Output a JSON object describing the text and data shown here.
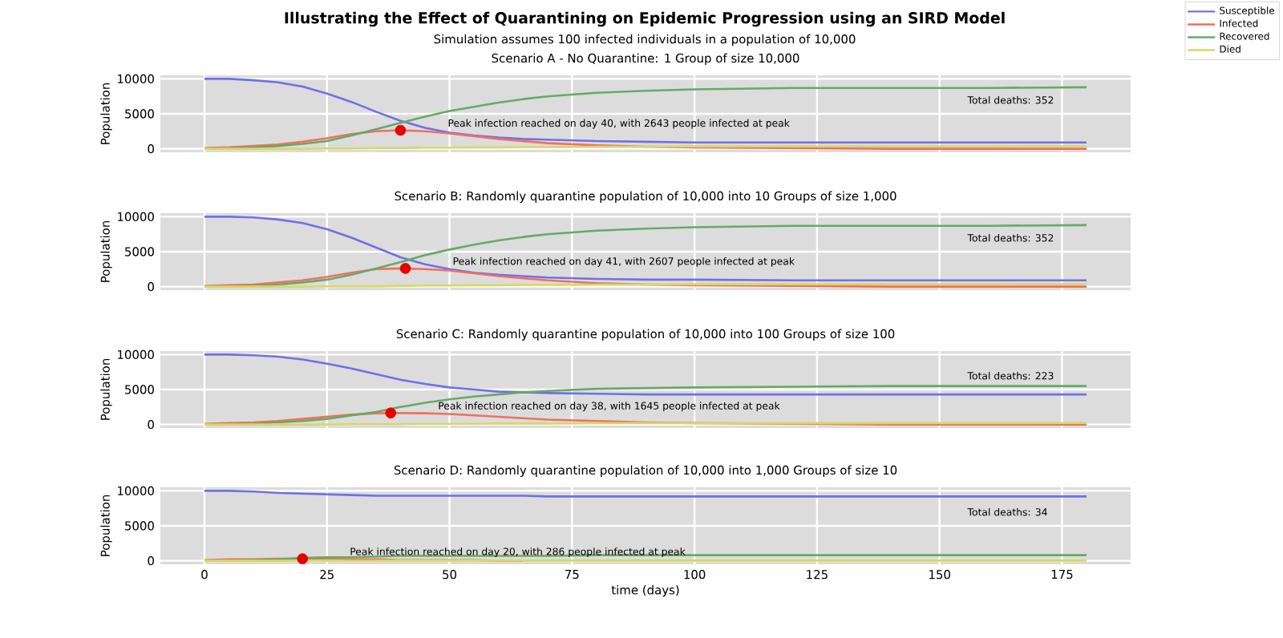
{
  "chart_data": [
    {
      "type": "other",
      "title": "Illustrating the Effect of Quarantining on Epidemic Progression using an SIRD Model",
      "subtitle": "Simulation assumes 100 infected individuals in a population of 10,000"
    },
    {
      "type": "line",
      "title": "Scenario A - No Quarantine: 1 Group of size 10,000",
      "ylabel": "Population",
      "x": [
        0,
        5,
        10,
        15,
        20,
        25,
        30,
        35,
        40,
        45,
        50,
        55,
        60,
        65,
        70,
        80,
        90,
        100,
        120,
        140,
        160,
        180
      ],
      "series": [
        {
          "name": "Susceptible",
          "color": "#7070e8",
          "values": [
            10000,
            10000,
            9800,
            9500,
            8900,
            7900,
            6700,
            5300,
            4000,
            3000,
            2300,
            1900,
            1600,
            1400,
            1300,
            1100,
            1000,
            900,
            900,
            900,
            900,
            900
          ]
        },
        {
          "name": "Infected",
          "color": "#f07060",
          "values": [
            100,
            200,
            400,
            600,
            1000,
            1500,
            2100,
            2500,
            2643,
            2500,
            2200,
            1800,
            1400,
            1100,
            800,
            500,
            300,
            200,
            100,
            0,
            0,
            0
          ]
        },
        {
          "name": "Recovered",
          "color": "#66aa66",
          "values": [
            0,
            0,
            200,
            400,
            700,
            1100,
            1900,
            2800,
            3700,
            4600,
            5400,
            6000,
            6600,
            7100,
            7500,
            8000,
            8300,
            8500,
            8700,
            8700,
            8700,
            8800
          ]
        },
        {
          "name": "Died",
          "color": "#d8d860",
          "values": [
            0,
            0,
            0,
            0,
            0,
            50,
            50,
            100,
            100,
            150,
            150,
            200,
            200,
            250,
            250,
            300,
            300,
            350,
            350,
            350,
            350,
            352
          ]
        },
        {
          "type": "scatter",
          "color": "#e80000",
          "marker": "circle",
          "x": [
            40
          ],
          "values": [
            2643
          ]
        }
      ],
      "xlim": [
        -9,
        189
      ],
      "ylim": [
        -500,
        10500
      ],
      "xticks": [
        0,
        25,
        50,
        75,
        100,
        125,
        150,
        175
      ],
      "yticks": [
        0,
        5000,
        10000
      ],
      "grid": true,
      "legend": "top right",
      "tick_labels": "y",
      "annotations": [
        "Peak infection reached on day 40, with 2643 people infected at peak",
        "Total deaths: 352"
      ]
    },
    {
      "type": "line",
      "title": "Scenario B: Randomly quarantine population of 10,000 into 10 Groups of size 1,000",
      "ylabel": "Population",
      "x": [
        0,
        5,
        10,
        15,
        20,
        25,
        30,
        35,
        40,
        45,
        50,
        55,
        60,
        65,
        70,
        80,
        90,
        100,
        120,
        140,
        160,
        180
      ],
      "series": [
        {
          "color": "#7070e8",
          "values": [
            10000,
            10000,
            9900,
            9600,
            9100,
            8200,
            7000,
            5600,
            4200,
            3200,
            2500,
            2000,
            1700,
            1500,
            1300,
            1100,
            1000,
            1000,
            900,
            900,
            900,
            900
          ]
        },
        {
          "color": "#f07060",
          "values": [
            100,
            200,
            300,
            600,
            900,
            1400,
            2000,
            2500,
            2607,
            2500,
            2300,
            1900,
            1500,
            1200,
            900,
            500,
            300,
            200,
            100,
            0,
            0,
            0
          ]
        },
        {
          "color": "#66aa66",
          "values": [
            0,
            0,
            100,
            300,
            600,
            1000,
            1700,
            2600,
            3500,
            4500,
            5300,
            6000,
            6600,
            7100,
            7500,
            8000,
            8300,
            8500,
            8700,
            8700,
            8700,
            8800
          ]
        },
        {
          "color": "#d8d860",
          "values": [
            0,
            0,
            0,
            0,
            0,
            50,
            50,
            50,
            100,
            150,
            150,
            200,
            200,
            250,
            250,
            300,
            300,
            350,
            350,
            350,
            350,
            352
          ]
        },
        {
          "type": "scatter",
          "color": "#e80000",
          "marker": "circle",
          "x": [
            41
          ],
          "values": [
            2607
          ]
        }
      ],
      "xlim": [
        -9,
        189
      ],
      "ylim": [
        -500,
        10500
      ],
      "xticks": [
        0,
        25,
        50,
        75,
        100,
        125,
        150,
        175
      ],
      "yticks": [
        0,
        5000,
        10000
      ],
      "grid": true,
      "tick_labels": "y",
      "annotations": [
        "Peak infection reached on day 41, with 2607 people infected at peak",
        "Total deaths: 352"
      ]
    },
    {
      "type": "line",
      "title": "Scenario C: Randomly quarantine population of 10,000 into 100 Groups of size 100",
      "ylabel": "Population",
      "x": [
        0,
        5,
        10,
        15,
        20,
        25,
        30,
        35,
        40,
        45,
        50,
        55,
        60,
        65,
        70,
        80,
        90,
        100,
        120,
        140,
        160,
        180
      ],
      "series": [
        {
          "color": "#7070e8",
          "values": [
            10000,
            10000,
            9900,
            9700,
            9300,
            8700,
            8000,
            7200,
            6400,
            5800,
            5300,
            5000,
            4700,
            4600,
            4500,
            4400,
            4300,
            4300,
            4300,
            4300,
            4300,
            4300
          ]
        },
        {
          "color": "#f07060",
          "values": [
            100,
            200,
            300,
            500,
            800,
            1100,
            1400,
            1600,
            1645,
            1600,
            1500,
            1300,
            1100,
            900,
            700,
            500,
            300,
            200,
            100,
            0,
            0,
            0
          ]
        },
        {
          "color": "#66aa66",
          "values": [
            0,
            0,
            100,
            300,
            500,
            800,
            1300,
            1800,
            2500,
            3100,
            3600,
            4000,
            4300,
            4600,
            4800,
            5100,
            5200,
            5300,
            5400,
            5500,
            5500,
            5500
          ]
        },
        {
          "color": "#d8d860",
          "values": [
            0,
            0,
            0,
            0,
            0,
            0,
            50,
            50,
            50,
            100,
            100,
            100,
            150,
            150,
            150,
            200,
            200,
            200,
            200,
            200,
            200,
            223
          ]
        },
        {
          "type": "scatter",
          "color": "#e80000",
          "marker": "circle",
          "x": [
            38
          ],
          "values": [
            1645
          ]
        }
      ],
      "xlim": [
        -9,
        189
      ],
      "ylim": [
        -500,
        10500
      ],
      "xticks": [
        0,
        25,
        50,
        75,
        100,
        125,
        150,
        175
      ],
      "yticks": [
        0,
        5000,
        10000
      ],
      "grid": true,
      "tick_labels": "y",
      "annotations": [
        "Peak infection reached on day 38, with 1645 people infected at peak",
        "Total deaths: 223"
      ]
    },
    {
      "type": "line",
      "title": "Scenario D: Randomly quarantine population of 10,000 into 1,000 Groups of size 10",
      "ylabel": "Population",
      "xlabel": "time (days)",
      "x": [
        0,
        5,
        10,
        15,
        20,
        25,
        30,
        35,
        40,
        45,
        50,
        55,
        60,
        65,
        70,
        80,
        90,
        100,
        120,
        140,
        160,
        180
      ],
      "series": [
        {
          "color": "#7070e8",
          "values": [
            10000,
            10000,
            9900,
            9700,
            9600,
            9500,
            9400,
            9300,
            9300,
            9300,
            9300,
            9300,
            9300,
            9300,
            9200,
            9200,
            9200,
            9200,
            9200,
            9200,
            9200,
            9200
          ]
        },
        {
          "color": "#f07060",
          "values": [
            100,
            200,
            200,
            300,
            286,
            300,
            200,
            200,
            100,
            100,
            100,
            100,
            0,
            0,
            null,
            null,
            null,
            null,
            null,
            null,
            null,
            null
          ]
        },
        {
          "color": "#66aa66",
          "values": [
            0,
            0,
            100,
            200,
            400,
            500,
            500,
            600,
            700,
            700,
            700,
            700,
            700,
            700,
            700,
            800,
            800,
            800,
            800,
            800,
            800,
            800
          ]
        },
        {
          "color": "#d8d860",
          "values": [
            0,
            1,
            3,
            6,
            10,
            14,
            18,
            22,
            25,
            27,
            29,
            30,
            31,
            32,
            32,
            33,
            33,
            34,
            34,
            34,
            34,
            34
          ]
        },
        {
          "type": "scatter",
          "color": "#e80000",
          "marker": "circle",
          "x": [
            20
          ],
          "values": [
            286
          ]
        }
      ],
      "xlim": [
        -9,
        189
      ],
      "ylim": [
        -500,
        10500
      ],
      "xticks": [
        0,
        25,
        50,
        75,
        100,
        125,
        150,
        175
      ],
      "yticks": [
        0,
        5000,
        10000
      ],
      "grid": true,
      "annotations": [
        "Peak infection reached on day 20, with 286 people infected at peak",
        "Total deaths: 34"
      ]
    }
  ]
}
